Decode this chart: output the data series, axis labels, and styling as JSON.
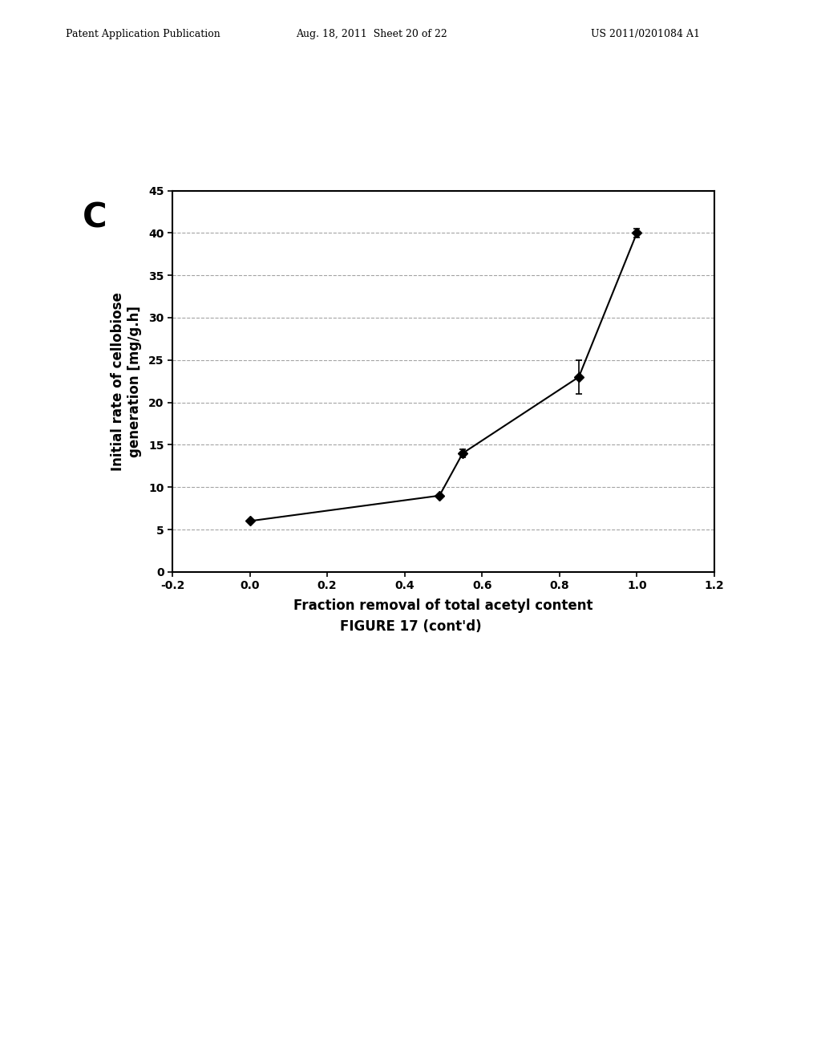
{
  "x": [
    0.0,
    0.49,
    0.55,
    0.85,
    1.0
  ],
  "y": [
    6.0,
    9.0,
    14.0,
    23.0,
    40.0
  ],
  "yerr": [
    0.0,
    0.0,
    0.5,
    2.0,
    0.5
  ],
  "xlabel": "Fraction removal of total acetyl content",
  "ylabel": "Initial rate of cellobiose\ngeneration [mg/g.h]",
  "figure_label": "FIGURE 17 (cont'd)",
  "panel_label": "C",
  "xlim": [
    -0.2,
    1.2
  ],
  "ylim": [
    0,
    45
  ],
  "xticks": [
    -0.2,
    0.0,
    0.2,
    0.4,
    0.6,
    0.8,
    1.0,
    1.2
  ],
  "yticks": [
    0,
    5,
    10,
    15,
    20,
    25,
    30,
    35,
    40,
    45
  ],
  "grid_color": "#666666",
  "line_color": "#000000",
  "marker_color": "#000000",
  "bg_color": "#ffffff",
  "header_left": "Patent Application Publication",
  "header_mid": "Aug. 18, 2011  Sheet 20 of 22",
  "header_right": "US 2011/0201084 A1"
}
